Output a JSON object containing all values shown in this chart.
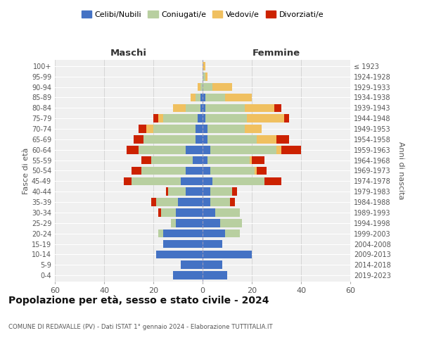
{
  "age_groups": [
    "0-4",
    "5-9",
    "10-14",
    "15-19",
    "20-24",
    "25-29",
    "30-34",
    "35-39",
    "40-44",
    "45-49",
    "50-54",
    "55-59",
    "60-64",
    "65-69",
    "70-74",
    "75-79",
    "80-84",
    "85-89",
    "90-94",
    "95-99",
    "100+"
  ],
  "birth_years": [
    "2019-2023",
    "2014-2018",
    "2009-2013",
    "2004-2008",
    "1999-2003",
    "1994-1998",
    "1989-1993",
    "1984-1988",
    "1979-1983",
    "1974-1978",
    "1969-1973",
    "1964-1968",
    "1959-1963",
    "1954-1958",
    "1949-1953",
    "1944-1948",
    "1939-1943",
    "1934-1938",
    "1929-1933",
    "1924-1928",
    "≤ 1923"
  ],
  "colors": {
    "celibe": "#4472c4",
    "coniugato": "#b8cfa0",
    "vedovo": "#f0c060",
    "divorziato": "#cc2200"
  },
  "males": {
    "celibe": [
      12,
      9,
      19,
      16,
      16,
      11,
      11,
      10,
      7,
      9,
      7,
      4,
      7,
      3,
      3,
      2,
      1,
      1,
      0,
      0,
      0
    ],
    "coniugato": [
      0,
      0,
      0,
      0,
      2,
      2,
      6,
      9,
      7,
      20,
      18,
      17,
      19,
      21,
      17,
      14,
      6,
      2,
      1,
      0,
      0
    ],
    "vedovo": [
      0,
      0,
      0,
      0,
      0,
      0,
      0,
      0,
      0,
      0,
      0,
      0,
      0,
      0,
      3,
      2,
      5,
      2,
      1,
      0,
      0
    ],
    "divorziato": [
      0,
      0,
      0,
      0,
      0,
      0,
      1,
      2,
      1,
      3,
      4,
      4,
      5,
      4,
      3,
      2,
      0,
      0,
      0,
      0,
      0
    ]
  },
  "females": {
    "nubile": [
      10,
      8,
      20,
      8,
      9,
      7,
      5,
      3,
      3,
      4,
      3,
      2,
      3,
      2,
      2,
      1,
      1,
      1,
      0,
      0,
      0
    ],
    "coniugata": [
      0,
      0,
      0,
      0,
      6,
      9,
      10,
      8,
      9,
      21,
      18,
      17,
      27,
      20,
      15,
      17,
      16,
      8,
      4,
      1,
      0
    ],
    "vedova": [
      0,
      0,
      0,
      0,
      0,
      0,
      0,
      0,
      0,
      0,
      1,
      1,
      2,
      8,
      7,
      15,
      12,
      11,
      8,
      1,
      1
    ],
    "divorziata": [
      0,
      0,
      0,
      0,
      0,
      0,
      0,
      2,
      2,
      7,
      4,
      5,
      8,
      5,
      0,
      2,
      3,
      0,
      0,
      0,
      0
    ]
  },
  "xlim": [
    -60,
    60
  ],
  "title": "Popolazione per età, sesso e stato civile - 2024",
  "subtitle": "COMUNE DI REDAVALLE (PV) - Dati ISTAT 1° gennaio 2024 - Elaborazione TUTTITALIA.IT",
  "xlabel_left": "Maschi",
  "xlabel_right": "Femmine",
  "ylabel_left": "Fasce di età",
  "ylabel_right": "Anni di nascita",
  "background_color": "#f0f0f0",
  "grid_color": "#cccccc"
}
